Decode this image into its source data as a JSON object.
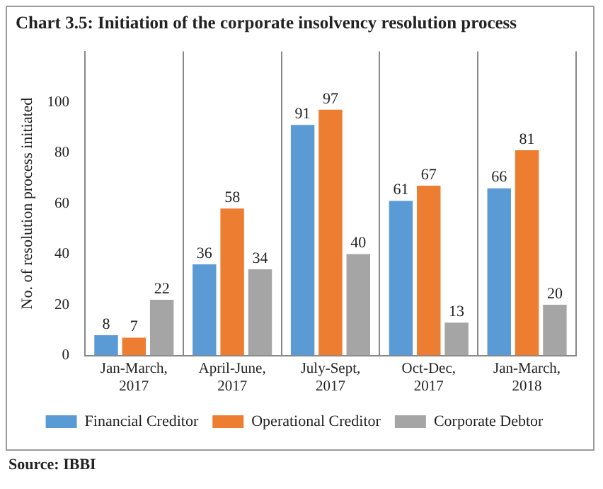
{
  "chart_data": {
    "type": "bar",
    "title": "Chart 3.5: Initiation of the corporate insolvency resolution process",
    "ylabel": "No. of resolution process initiated",
    "categories": [
      "Jan-March, 2017",
      "April-June, 2017",
      "July-Sept, 2017",
      "Oct-Dec, 2017",
      "Jan-March, 2018"
    ],
    "series": [
      {
        "name": "Financial Creditor",
        "color": "#5b9bd5",
        "values": [
          8,
          36,
          91,
          61,
          66
        ]
      },
      {
        "name": "Operational Creditor",
        "color": "#ed7d31",
        "values": [
          7,
          58,
          97,
          67,
          81
        ]
      },
      {
        "name": "Corporate Debtor",
        "color": "#a5a5a5",
        "values": [
          22,
          34,
          40,
          13,
          20
        ]
      }
    ],
    "ylim": [
      0,
      120
    ],
    "yticks": [
      0,
      20,
      40,
      60,
      80,
      100
    ],
    "grid": "x",
    "legend": "bottom",
    "data_labels": true,
    "annotations": [
      "Source: IBBI"
    ]
  }
}
